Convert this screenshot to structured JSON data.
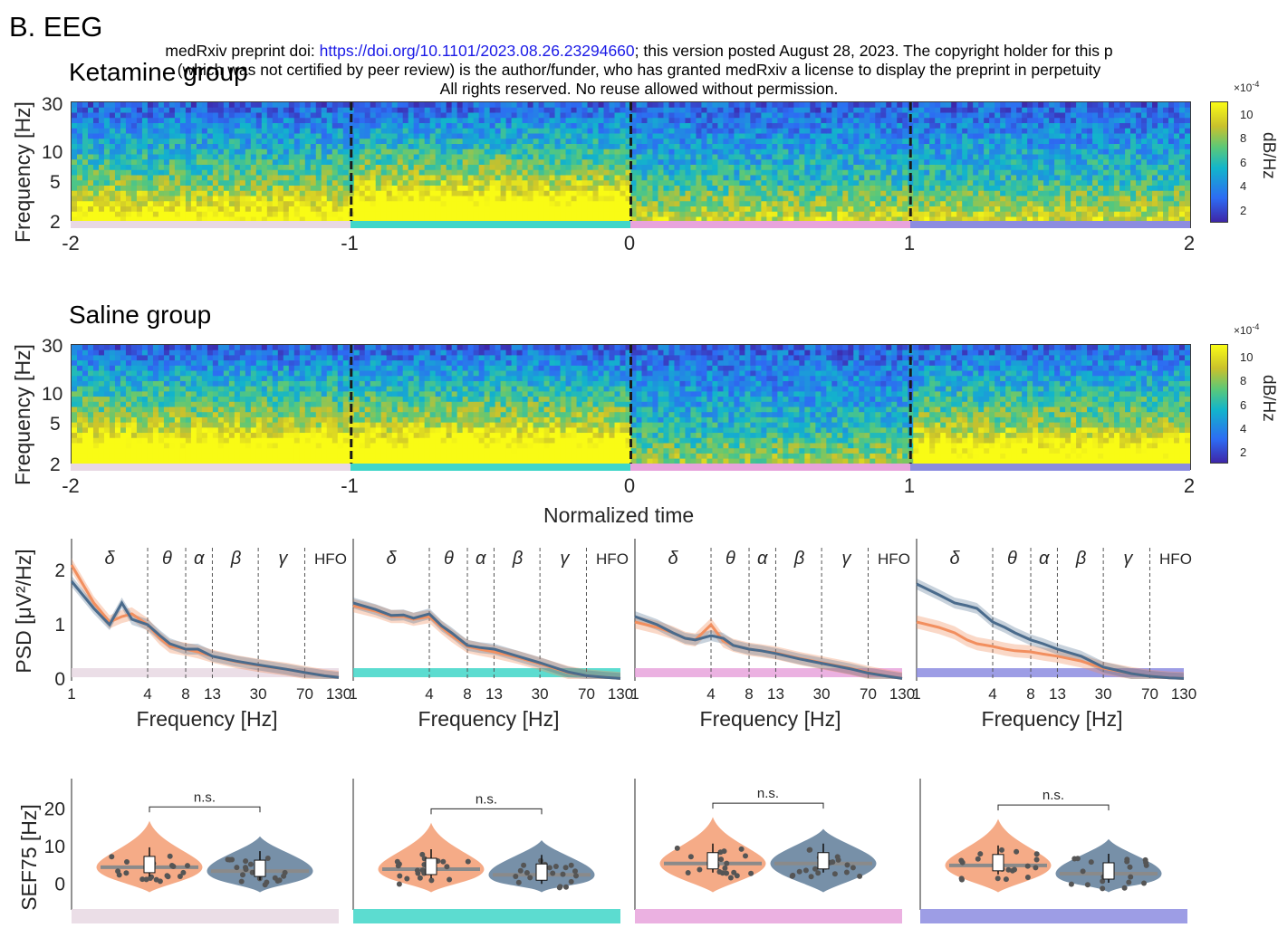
{
  "header": {
    "section_label": "B. EEG",
    "banner_prefix": "medRxiv preprint doi: ",
    "banner_link": "https://doi.org/10.1101/2023.08.26.23294660",
    "banner_suffix": "; this version posted August 28, 2023. The copyright holder for this p",
    "banner_line2": "(which was not certified by peer review) is the author/funder, who has granted medRxiv a license to display the preprint in perpetuity",
    "banner_line3": "All rights reserved. No reuse allowed without permission."
  },
  "colors": {
    "ketamine": "#f28f5f",
    "saline": "#4a6b8c",
    "phase1": "#e8d8e3",
    "phase2": "#3fd6c8",
    "phase3": "#e8a3dc",
    "phase4": "#8c8ce0"
  },
  "spectrograms": {
    "ketamine_title": "Ketamine group",
    "saline_title": "Saline group",
    "ylabel": "Frequency [Hz]",
    "yticks": [
      "30",
      "10",
      "5",
      "2"
    ],
    "xticks": [
      "-2",
      "-1",
      "0",
      "1",
      "2"
    ],
    "xlabel": "Normalized time",
    "colorbar": {
      "exponent": "×10",
      "exponent_power": "-4",
      "ticks": [
        "10",
        "8",
        "6",
        "4",
        "2"
      ],
      "label": "dB/Hz"
    }
  },
  "chart_data": [
    {
      "type": "line",
      "panel": "PSD",
      "ylabel": "PSD [μV²/Hz]",
      "xlabel": "Frequency [Hz]",
      "xscale": "log",
      "x_ticks": [
        1,
        4,
        8,
        13,
        30,
        70,
        130
      ],
      "y_ticks": [
        0,
        1,
        2
      ],
      "bands": [
        "δ",
        "θ",
        "α",
        "β",
        "γ",
        "HFO"
      ],
      "band_edges_hz": [
        4,
        8,
        13,
        30,
        70
      ],
      "freqs": [
        1,
        1.5,
        2,
        2.5,
        3,
        4,
        5,
        6,
        8,
        10,
        13,
        20,
        30,
        50,
        70,
        100,
        130
      ],
      "phases": [
        {
          "ketamine": [
            2.1,
            1.4,
            1.05,
            1.15,
            1.2,
            1.0,
            0.75,
            0.6,
            0.55,
            0.5,
            0.42,
            0.32,
            0.25,
            0.18,
            0.12,
            0.06,
            0.03
          ],
          "saline": [
            1.8,
            1.3,
            1.0,
            1.4,
            1.1,
            1.0,
            0.8,
            0.65,
            0.55,
            0.55,
            0.42,
            0.33,
            0.26,
            0.18,
            0.12,
            0.06,
            0.03
          ]
        },
        {
          "ketamine": [
            1.35,
            1.25,
            1.15,
            1.15,
            1.1,
            1.15,
            0.95,
            0.8,
            0.6,
            0.55,
            0.5,
            0.4,
            0.28,
            0.12,
            0.06,
            0.03,
            0.01
          ],
          "saline": [
            1.4,
            1.28,
            1.17,
            1.18,
            1.12,
            1.2,
            0.98,
            0.85,
            0.62,
            0.58,
            0.55,
            0.42,
            0.3,
            0.13,
            0.06,
            0.03,
            0.01
          ]
        },
        {
          "ketamine": [
            1.05,
            0.95,
            0.85,
            0.75,
            0.72,
            1.0,
            0.7,
            0.62,
            0.55,
            0.52,
            0.48,
            0.38,
            0.3,
            0.2,
            0.12,
            0.05,
            0.01
          ],
          "saline": [
            1.15,
            1.0,
            0.85,
            0.75,
            0.72,
            0.8,
            0.75,
            0.62,
            0.55,
            0.52,
            0.47,
            0.37,
            0.29,
            0.19,
            0.11,
            0.05,
            0.01
          ]
        },
        {
          "ketamine": [
            1.05,
            0.95,
            0.85,
            0.72,
            0.65,
            0.6,
            0.55,
            0.52,
            0.5,
            0.46,
            0.42,
            0.33,
            0.2,
            0.1,
            0.05,
            0.02,
            0.01
          ],
          "saline": [
            1.75,
            1.55,
            1.4,
            1.35,
            1.3,
            1.05,
            0.95,
            0.85,
            0.72,
            0.65,
            0.55,
            0.42,
            0.22,
            0.1,
            0.05,
            0.02,
            0.01
          ]
        }
      ]
    },
    {
      "type": "violin",
      "panel": "SEF75",
      "ylabel": "SEF75 [Hz]",
      "y_ticks": [
        0,
        10,
        20
      ],
      "groups": [
        "ketamine",
        "saline"
      ],
      "phases": [
        {
          "ketamine_median": 4.5,
          "saline_median": 3.5,
          "significance": "n.s."
        },
        {
          "ketamine_median": 4.0,
          "saline_median": 2.5,
          "significance": "n.s."
        },
        {
          "ketamine_median": 5.5,
          "saline_median": 5.5,
          "significance": "n.s."
        },
        {
          "ketamine_median": 5.0,
          "saline_median": 2.8,
          "significance": "n.s."
        }
      ]
    }
  ]
}
